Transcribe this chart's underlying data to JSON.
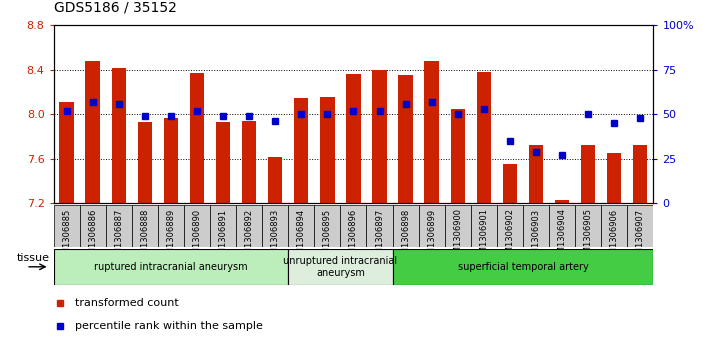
{
  "title": "GDS5186 / 35152",
  "samples": [
    "GSM1306885",
    "GSM1306886",
    "GSM1306887",
    "GSM1306888",
    "GSM1306889",
    "GSM1306890",
    "GSM1306891",
    "GSM1306892",
    "GSM1306893",
    "GSM1306894",
    "GSM1306895",
    "GSM1306896",
    "GSM1306897",
    "GSM1306898",
    "GSM1306899",
    "GSM1306900",
    "GSM1306901",
    "GSM1306902",
    "GSM1306903",
    "GSM1306904",
    "GSM1306905",
    "GSM1306906",
    "GSM1306907"
  ],
  "transformed_counts": [
    8.11,
    8.48,
    8.42,
    7.93,
    7.97,
    8.37,
    7.93,
    7.94,
    7.62,
    8.15,
    8.16,
    8.36,
    8.4,
    8.35,
    8.48,
    8.05,
    8.38,
    7.55,
    7.72,
    7.23,
    7.72,
    7.65,
    7.72
  ],
  "percentile_ranks": [
    52,
    57,
    56,
    49,
    49,
    52,
    49,
    49,
    46,
    50,
    50,
    52,
    52,
    56,
    57,
    50,
    53,
    35,
    29,
    27,
    50,
    45,
    48
  ],
  "ylim_left": [
    7.2,
    8.8
  ],
  "ylim_right": [
    0,
    100
  ],
  "yticks_left": [
    7.2,
    7.6,
    8.0,
    8.4,
    8.8
  ],
  "yticks_right": [
    0,
    25,
    50,
    75,
    100
  ],
  "bar_color": "#CC2200",
  "dot_color": "#0000CC",
  "bar_bottom": 7.2,
  "groups": [
    {
      "label": "ruptured intracranial aneurysm",
      "start": 0,
      "end": 9,
      "color": "#bbeebb"
    },
    {
      "label": "unruptured intracranial\naneurysm",
      "start": 9,
      "end": 13,
      "color": "#ddeedd"
    },
    {
      "label": "superficial temporal artery",
      "start": 13,
      "end": 23,
      "color": "#44cc44"
    }
  ],
  "tissue_label": "tissue",
  "legend_bar_label": "transformed count",
  "legend_dot_label": "percentile rank within the sample",
  "tick_bg_color": "#cccccc",
  "plot_bg_color": "#ffffff"
}
